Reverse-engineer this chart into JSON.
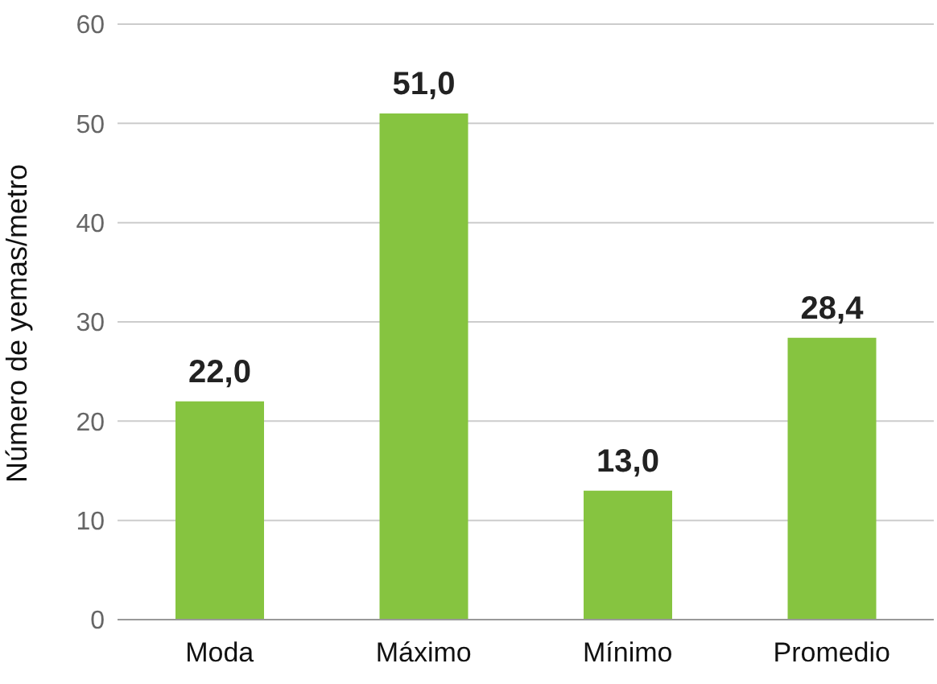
{
  "chart_data": {
    "type": "bar",
    "ylabel": "Número de yemas/metro",
    "categories": [
      "Moda",
      "Máximo",
      "Mínimo",
      "Promedio"
    ],
    "values": [
      22.0,
      51.0,
      13.0,
      28.4
    ],
    "value_labels": [
      "22,0",
      "51,0",
      "13,0",
      "28,4"
    ],
    "color": "#86c440",
    "ylim": [
      0,
      60
    ],
    "yticks": [
      0,
      10,
      20,
      30,
      40,
      50,
      60
    ],
    "grid": "y"
  }
}
